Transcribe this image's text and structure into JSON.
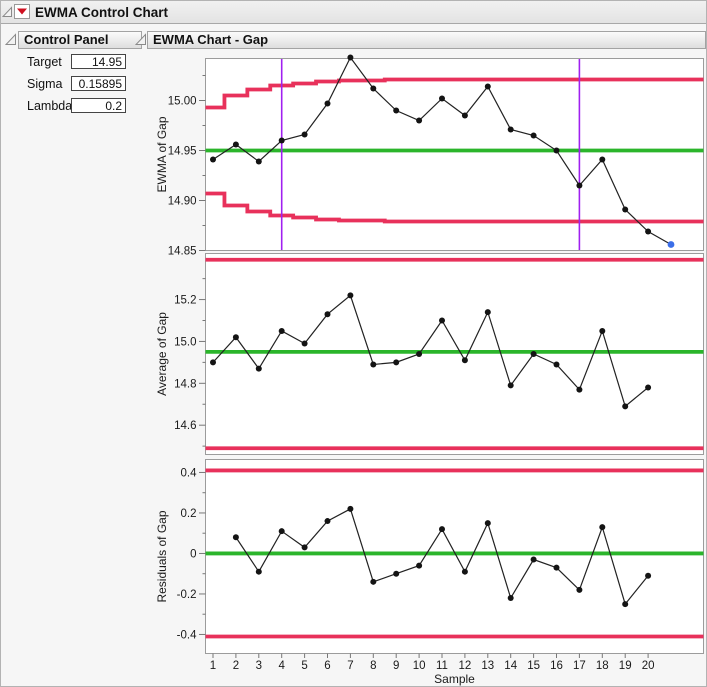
{
  "window": {
    "title": "EWMA Control Chart"
  },
  "control_panel": {
    "title": "Control Panel",
    "fields": [
      {
        "label": "Target",
        "value": "14.95"
      },
      {
        "label": "Sigma",
        "value": "0.15895"
      },
      {
        "label": "Lambda",
        "value": "0.2"
      }
    ]
  },
  "chart_panel": {
    "title": "EWMA Chart - Gap"
  },
  "colors": {
    "limit_red": "#e8315b",
    "center_green": "#2bb52b",
    "phase_purple": "#a020f0",
    "highlight_blue": "#3b6ee8",
    "point_black": "#141414"
  },
  "x_axis": {
    "label": "Sample",
    "ticks": [
      1,
      2,
      3,
      4,
      5,
      6,
      7,
      8,
      9,
      10,
      11,
      12,
      13,
      14,
      15,
      16,
      17,
      18,
      19,
      20
    ]
  },
  "chart_data": [
    {
      "type": "line",
      "id": "ewma",
      "ylabel": "EWMA of Gap",
      "xlabel": "Sample",
      "center_line": 14.95,
      "ylim": [
        14.85,
        15.042
      ],
      "ytick_values": [
        15.0,
        14.95,
        14.9,
        14.85
      ],
      "ytick_labels": [
        "15.00",
        "14.95",
        "14.90",
        "14.85"
      ],
      "yticks_minor": [
        15.025,
        14.975,
        14.925,
        14.875
      ],
      "phase_lines_x": [
        4,
        17
      ],
      "x": [
        1,
        2,
        3,
        4,
        5,
        6,
        7,
        8,
        9,
        10,
        11,
        12,
        13,
        14,
        15,
        16,
        17,
        18,
        19,
        20,
        21
      ],
      "values": [
        14.941,
        14.956,
        14.939,
        14.96,
        14.966,
        14.997,
        15.043,
        15.012,
        14.99,
        14.98,
        15.002,
        14.985,
        15.014,
        14.971,
        14.965,
        14.95,
        14.915,
        14.941,
        14.891,
        14.869,
        14.856
      ],
      "last_point_highlighted": true,
      "ucl_by_sample": [
        14.993,
        15.005,
        15.011,
        15.015,
        15.017,
        15.019,
        15.02,
        15.02,
        15.021,
        15.021,
        15.021,
        15.021,
        15.021,
        15.021,
        15.021,
        15.021,
        15.021,
        15.021,
        15.021,
        15.021,
        15.021
      ],
      "lcl_by_sample": [
        14.907,
        14.895,
        14.889,
        14.885,
        14.883,
        14.881,
        14.88,
        14.88,
        14.879,
        14.879,
        14.879,
        14.879,
        14.879,
        14.879,
        14.879,
        14.879,
        14.879,
        14.879,
        14.879,
        14.879,
        14.879
      ]
    },
    {
      "type": "line",
      "id": "average",
      "ylabel": "Average of Gap",
      "xlabel": "Sample",
      "center_line": 14.95,
      "ucl": 15.39,
      "lcl": 14.49,
      "ylim": [
        14.46,
        15.42
      ],
      "ytick_values": [
        15.2,
        15.0,
        14.8,
        14.6
      ],
      "ytick_labels": [
        "15.2",
        "15.0",
        "14.8",
        "14.6"
      ],
      "yticks_minor": [
        15.3,
        15.1,
        14.9,
        14.7,
        14.5
      ],
      "x": [
        1,
        2,
        3,
        4,
        5,
        6,
        7,
        8,
        9,
        10,
        11,
        12,
        13,
        14,
        15,
        16,
        17,
        18,
        19,
        20
      ],
      "values": [
        14.9,
        15.02,
        14.87,
        15.05,
        14.99,
        15.13,
        15.22,
        14.89,
        14.9,
        14.94,
        15.1,
        14.91,
        15.14,
        14.79,
        14.94,
        14.89,
        14.77,
        15.05,
        14.69,
        14.78
      ]
    },
    {
      "type": "line",
      "id": "residuals",
      "ylabel": "Residuals of Gap",
      "xlabel": "Sample",
      "center_line": 0,
      "ucl": 0.41,
      "lcl": -0.41,
      "ylim": [
        -0.494,
        0.464
      ],
      "ytick_values": [
        0.4,
        0.2,
        0,
        -0.2,
        -0.4
      ],
      "ytick_labels": [
        "0.4",
        "0.2",
        "0",
        "-0.2",
        "-0.4"
      ],
      "yticks_minor": [
        0.3,
        0.1,
        -0.1,
        -0.3
      ],
      "x": [
        2,
        3,
        4,
        5,
        6,
        7,
        8,
        9,
        10,
        11,
        12,
        13,
        14,
        15,
        16,
        17,
        18,
        19,
        20
      ],
      "values": [
        0.08,
        -0.09,
        0.11,
        0.03,
        0.16,
        0.22,
        -0.14,
        -0.1,
        -0.06,
        0.12,
        -0.09,
        0.15,
        -0.22,
        -0.03,
        -0.07,
        -0.18,
        0.13,
        -0.25,
        -0.11
      ]
    }
  ]
}
